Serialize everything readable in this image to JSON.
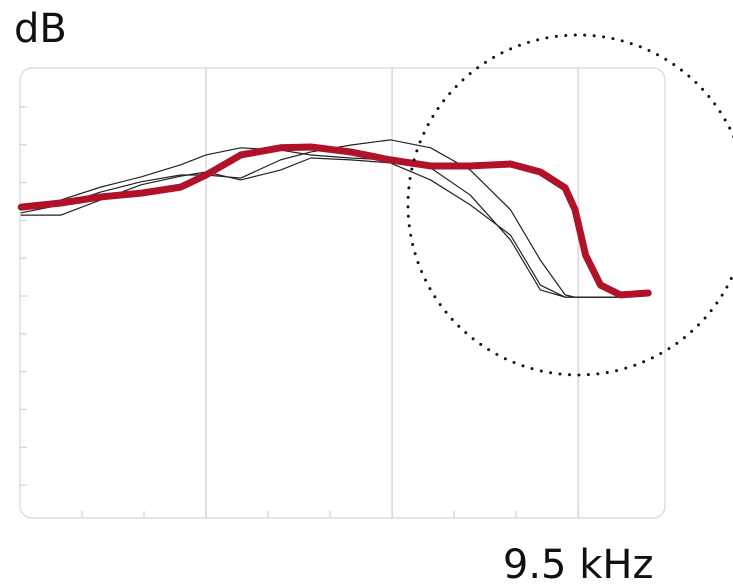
{
  "chart_data": {
    "type": "line",
    "ylabel": "dB",
    "x": [
      0.02,
      0.66,
      1.3,
      1.95,
      2.59,
      3.0,
      3.56,
      4.2,
      4.69,
      5.33,
      5.97,
      6.62,
      7.26,
      7.91,
      8.39,
      8.79,
      8.95,
      9.12,
      9.36,
      9.68,
      10.13
    ],
    "series": [
      {
        "color": "#222222",
        "values": [
          7.28,
          7.54,
          7.88,
          8.15,
          8.47,
          8.73,
          8.92,
          8.86,
          8.73,
          8.65,
          8.6,
          8.39,
          7.67,
          6.48,
          5.16,
          4.97,
          4.97,
          4.97,
          4.97,
          4.97,
          null
        ]
      },
      {
        "color": "#222222",
        "values": [
          7.2,
          7.41,
          7.75,
          8.02,
          8.2,
          8.2,
          8.12,
          8.6,
          8.81,
          8.99,
          9.13,
          8.92,
          8.33,
          7.28,
          5.95,
          5.03,
          4.97,
          4.97,
          4.97,
          4.97,
          null
        ]
      },
      {
        "color": "#222222",
        "values": [
          7.14,
          7.14,
          7.54,
          7.94,
          8.17,
          8.28,
          8.07,
          8.33,
          8.65,
          8.6,
          8.52,
          8.07,
          7.41,
          6.61,
          5.29,
          4.97,
          4.97,
          4.97,
          4.97,
          4.97,
          null
        ]
      },
      {
        "color": "#b0122a",
        "values": [
          7.35,
          7.46,
          7.62,
          7.72,
          7.88,
          8.2,
          8.73,
          8.92,
          8.94,
          8.81,
          8.6,
          8.44,
          8.44,
          8.49,
          8.28,
          7.86,
          7.28,
          6.08,
          5.29,
          5.03,
          5.08
        ]
      }
    ],
    "xlim": [
      0,
      10.4
    ],
    "ylim": [
      -0.87,
      11.03
    ],
    "xticks": [
      1,
      2,
      3,
      4,
      5,
      6,
      7,
      8,
      {
        "value": 9,
        "label": "9.5 kHz"
      }
    ],
    "yticks": [
      0,
      1,
      2,
      3,
      4,
      5,
      6,
      7,
      8,
      9,
      10
    ],
    "xgrid": [
      3,
      6,
      9
    ]
  }
}
